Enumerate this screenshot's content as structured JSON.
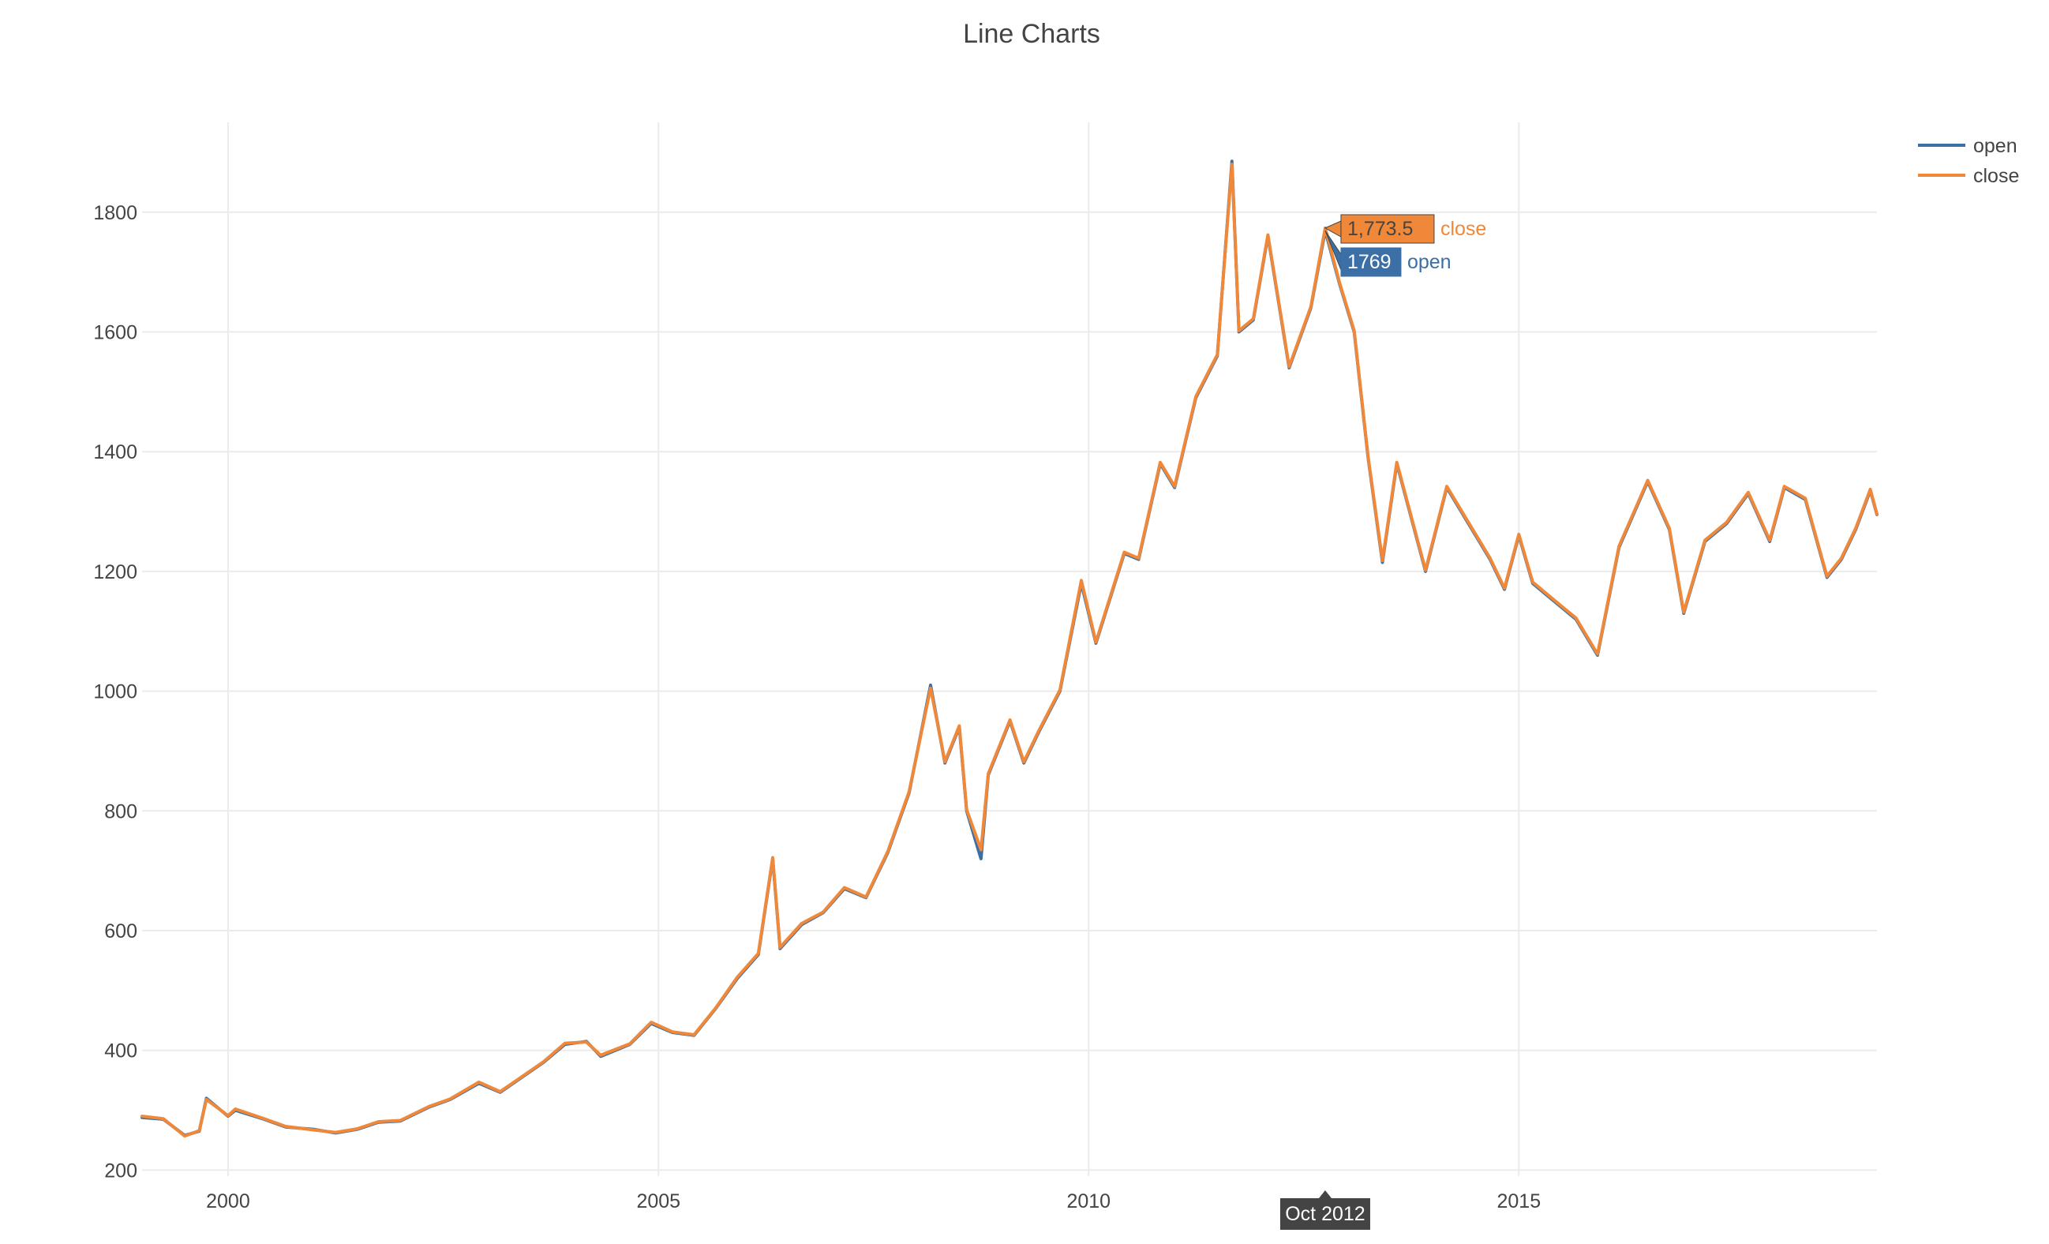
{
  "chart_data": {
    "type": "line",
    "title": "Line Charts",
    "xlabel": "",
    "ylabel": "",
    "x_range": [
      "1999-01-01",
      "2019-03-01"
    ],
    "x_ticks": [
      {
        "value": "2000-01-01",
        "label": "2000"
      },
      {
        "value": "2005-01-01",
        "label": "2005"
      },
      {
        "value": "2010-01-01",
        "label": "2010"
      },
      {
        "value": "2015-01-01",
        "label": "2015"
      }
    ],
    "ylim": [
      190,
      1950
    ],
    "y_ticks": [
      200,
      400,
      600,
      800,
      1000,
      1200,
      1400,
      1600,
      1800
    ],
    "grid": true,
    "legend_position": "top-right",
    "colors": {
      "open": "#3b6fa5",
      "close": "#f0883a",
      "hover_x_label_bg": "#444444"
    },
    "x": [
      "1999-01",
      "1999-04",
      "1999-07",
      "1999-09",
      "1999-10",
      "2000-01",
      "2000-02",
      "2000-06",
      "2000-09",
      "2001-01",
      "2001-04",
      "2001-07",
      "2001-10",
      "2002-01",
      "2002-05",
      "2002-08",
      "2002-12",
      "2003-03",
      "2003-06",
      "2003-09",
      "2003-12",
      "2004-03",
      "2004-05",
      "2004-09",
      "2004-12",
      "2005-03",
      "2005-06",
      "2005-09",
      "2005-12",
      "2006-03",
      "2006-05",
      "2006-06",
      "2006-09",
      "2006-12",
      "2007-03",
      "2007-06",
      "2007-09",
      "2007-12",
      "2008-03",
      "2008-05",
      "2008-07",
      "2008-08",
      "2008-10",
      "2008-11",
      "2009-02",
      "2009-04",
      "2009-06",
      "2009-09",
      "2009-12",
      "2010-02",
      "2010-06",
      "2010-08",
      "2010-11",
      "2011-01",
      "2011-04",
      "2011-07",
      "2011-09",
      "2011-10",
      "2011-12",
      "2012-02",
      "2012-05",
      "2012-08",
      "2012-10",
      "2012-12",
      "2013-02",
      "2013-04",
      "2013-06",
      "2013-08",
      "2013-12",
      "2014-03",
      "2014-06",
      "2014-09",
      "2014-11",
      "2015-01",
      "2015-03",
      "2015-07",
      "2015-09",
      "2015-12",
      "2016-03",
      "2016-07",
      "2016-10",
      "2016-12",
      "2017-03",
      "2017-06",
      "2017-09",
      "2017-12",
      "2018-02",
      "2018-05",
      "2018-08",
      "2018-10",
      "2018-12",
      "2019-02",
      "2019-03"
    ],
    "series": [
      {
        "name": "open",
        "values": [
          288,
          285,
          258,
          265,
          320,
          290,
          300,
          285,
          272,
          268,
          262,
          268,
          280,
          282,
          305,
          318,
          345,
          330,
          355,
          380,
          410,
          415,
          390,
          410,
          445,
          430,
          425,
          470,
          520,
          560,
          720,
          570,
          610,
          630,
          670,
          655,
          730,
          830,
          1010,
          880,
          940,
          800,
          720,
          860,
          950,
          880,
          930,
          1000,
          1180,
          1080,
          1230,
          1220,
          1380,
          1340,
          1490,
          1560,
          1885,
          1600,
          1620,
          1760,
          1540,
          1640,
          1769,
          1680,
          1600,
          1390,
          1215,
          1380,
          1200,
          1340,
          1280,
          1220,
          1170,
          1260,
          1180,
          1140,
          1120,
          1060,
          1240,
          1350,
          1270,
          1130,
          1250,
          1280,
          1330,
          1250,
          1340,
          1320,
          1190,
          1220,
          1270,
          1335,
          1295
        ]
      },
      {
        "name": "close",
        "values": [
          290,
          286,
          257,
          266,
          318,
          291,
          302,
          286,
          273,
          267,
          263,
          269,
          281,
          283,
          306,
          319,
          347,
          331,
          356,
          381,
          412,
          414,
          392,
          411,
          447,
          431,
          426,
          471,
          522,
          562,
          722,
          572,
          612,
          631,
          672,
          656,
          732,
          832,
          1005,
          882,
          942,
          802,
          735,
          862,
          952,
          882,
          932,
          1002,
          1185,
          1082,
          1232,
          1222,
          1382,
          1342,
          1492,
          1562,
          1880,
          1602,
          1622,
          1762,
          1542,
          1642,
          1773.5,
          1682,
          1602,
          1392,
          1218,
          1382,
          1202,
          1342,
          1282,
          1222,
          1172,
          1262,
          1182,
          1142,
          1122,
          1062,
          1242,
          1352,
          1272,
          1132,
          1252,
          1282,
          1332,
          1252,
          1342,
          1322,
          1192,
          1222,
          1272,
          1337,
          1296
        ]
      }
    ],
    "hover": {
      "x": "2012-10",
      "x_label": "Oct 2012",
      "labels": [
        {
          "series": "close",
          "value_text": "1,773.5",
          "value": 1773.5
        },
        {
          "series": "open",
          "value_text": "1769",
          "value": 1769
        }
      ]
    }
  }
}
